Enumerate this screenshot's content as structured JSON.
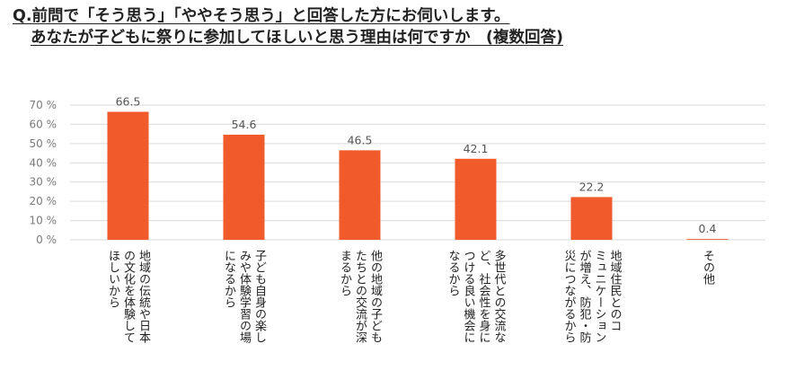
{
  "title": {
    "line1": "Q.前問で「そう思う」「ややそう思う」と回答した方にお伺いします。",
    "line2": "あなたが子どもに祭りに参加してほしいと思う理由は何ですか　(複数回答)"
  },
  "chart_data": {
    "type": "bar",
    "categories": [
      "地域の伝統や日本の文化を体験してほしいから",
      "子ども自身の楽しみや体験学習の場になるから",
      "他の地域の子どもたちとの交流が深まるから",
      "多世代との交流など、社会性を身につける良い機会になるから",
      "地域住民とのコミュニケーションが増え、防犯・防災につながるから",
      "その他"
    ],
    "category_lines": [
      [
        "地域の伝統や日本",
        "の文化を体験して",
        "ほしいから"
      ],
      [
        "子ども自身の楽し",
        "みや体験学習の場",
        "になるから"
      ],
      [
        "他の地域の子ども",
        "たちとの交流が深",
        "まるから"
      ],
      [
        "多世代との交流な",
        "ど、社会性を身に",
        "つける良い機会に",
        "なるから"
      ],
      [
        "地域住民とのコ",
        "ミュニケーション",
        "が増え、防犯・防",
        "災につながるから"
      ],
      [
        "その他"
      ]
    ],
    "values": [
      66.5,
      54.6,
      46.5,
      42.1,
      22.2,
      0.4
    ],
    "value_labels": [
      "66.5",
      "54.6",
      "46.5",
      "42.1",
      "22.2",
      "0.4"
    ],
    "y_ticks": [
      "70 %",
      "60 %",
      "50 %",
      "40 %",
      "30 %",
      "20 %",
      "10 %",
      "0 %"
    ],
    "ylim": [
      0,
      70
    ],
    "grid": true,
    "bar_color": "#F15A2B",
    "grid_color": "#D9D9D9",
    "label_color": "#595959"
  }
}
